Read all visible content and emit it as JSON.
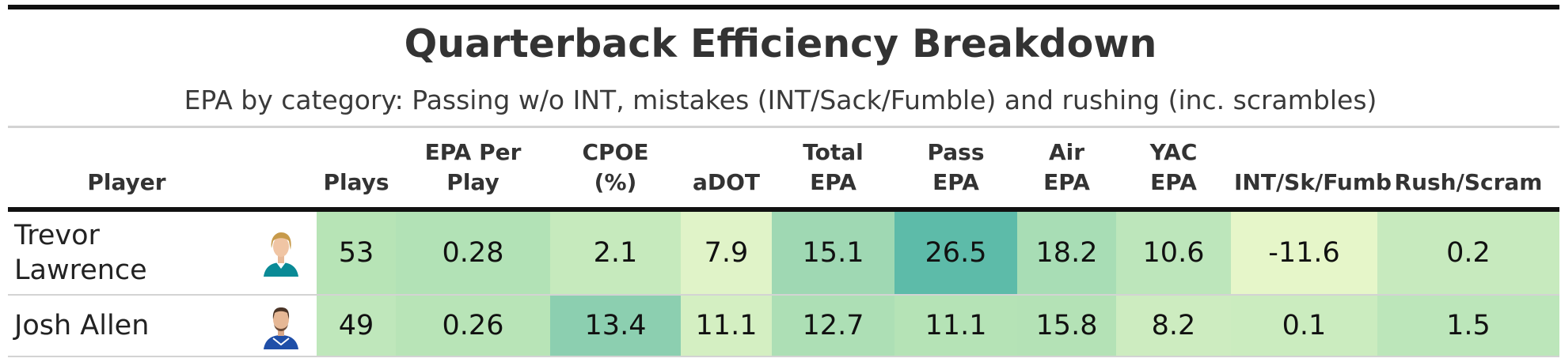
{
  "title": "Quarterback Efficiency Breakdown",
  "subtitle": "EPA by category: Passing w/o INT, mistakes (INT/Sack/Fumble) and rushing (inc. scrambles)",
  "columns": {
    "player": "Player",
    "plays": "Plays",
    "epa_per_play": [
      "EPA Per",
      "Play"
    ],
    "cpoe": [
      "CPOE",
      "(%)"
    ],
    "adot": "aDOT",
    "total_epa": [
      "Total",
      "EPA"
    ],
    "pass_epa": [
      "Pass",
      "EPA"
    ],
    "air_epa": [
      "Air",
      "EPA"
    ],
    "yac_epa": [
      "YAC",
      "EPA"
    ],
    "mistakes": "INT/Sk/Fumb",
    "rush": "Rush/Scram"
  },
  "rows": [
    {
      "player_lines": [
        "Trevor",
        "Lawrence"
      ],
      "headshot_icon": "player-headshot-icon",
      "plays": "53",
      "epa_per_play": "0.28",
      "cpoe": "2.1",
      "adot": "7.9",
      "total_epa": "15.1",
      "pass_epa": "26.5",
      "air_epa": "18.2",
      "yac_epa": "10.6",
      "mistakes": "-11.6",
      "rush": "0.2",
      "colors": {
        "plays": "#b7e4b6",
        "epa_per_play": "#b2e2b6",
        "cpoe": "#c6eabd",
        "adot": "#e0f3c8",
        "total_epa": "#9fd8b3",
        "pass_epa": "#5dbba9",
        "air_epa": "#a8ddb5",
        "yac_epa": "#bde6bb",
        "mistakes": "#e6f6c9",
        "rush": "#c7eabe"
      }
    },
    {
      "player_lines": [
        "Josh Allen"
      ],
      "headshot_icon": "player-headshot-icon",
      "plays": "49",
      "epa_per_play": "0.26",
      "cpoe": "13.4",
      "adot": "11.1",
      "total_epa": "12.7",
      "pass_epa": "11.1",
      "air_epa": "15.8",
      "yac_epa": "8.2",
      "mistakes": "0.1",
      "rush": "1.5",
      "colors": {
        "plays": "#bfe7bb",
        "epa_per_play": "#b8e4b7",
        "cpoe": "#8ccfb0",
        "adot": "#d4efc2",
        "total_epa": "#addfb5",
        "pass_epa": "#b5e3b6",
        "air_epa": "#b4e2b6",
        "yac_epa": "#cdecc0",
        "mistakes": "#cbecbf",
        "rush": "#bce6ba"
      }
    }
  ]
}
